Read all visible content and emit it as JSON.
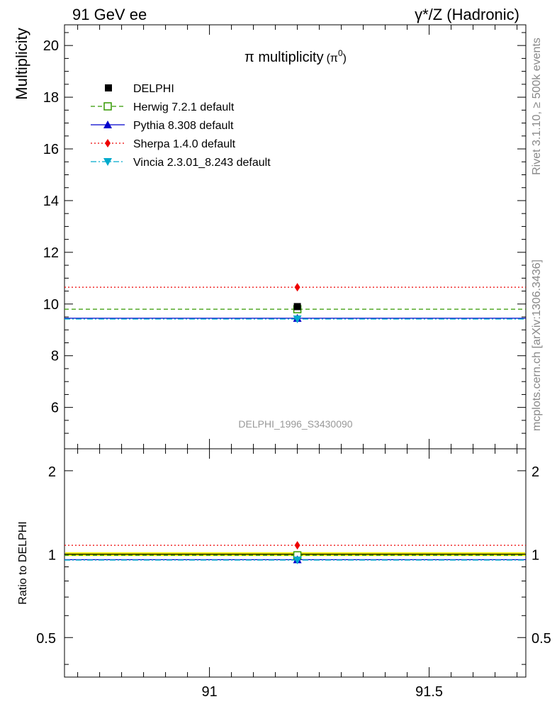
{
  "header": {
    "left": "91 GeV ee",
    "right": "γ*/Z (Hadronic)"
  },
  "side_labels": {
    "rivet": "Rivet 3.1.10, ≥ 500k events",
    "mcplots": "mcplots.cern.ch [arXiv:1306.3436]"
  },
  "chart_data": [
    {
      "type": "scatter",
      "title": "π multiplicity",
      "title_suffix": "(π",
      "title_sup": "0",
      "title_close": ")",
      "ylabel": "Multiplicity",
      "xlim": [
        90.67,
        91.72
      ],
      "ylim": [
        4.4,
        20.8
      ],
      "xticks": [
        91,
        91.5
      ],
      "yticks": [
        6,
        8,
        10,
        12,
        14,
        16,
        18,
        20
      ],
      "ytick_labels": [
        "6",
        "8",
        "10",
        "12",
        "14",
        "16",
        "18",
        "20"
      ],
      "watermark": "DELPHI_1996_S3430090",
      "legend_position": "top-left",
      "data": {
        "name": "DELPHI",
        "x": 91.2,
        "y": 9.9,
        "color": "#000000"
      },
      "series": [
        {
          "name": "Herwig 7.2.1 default",
          "x": [
            90.67,
            91.72
          ],
          "y": 9.8,
          "marker_x": 91.2,
          "color": "#339900",
          "dash": "6,4",
          "marker": "open-square"
        },
        {
          "name": "Pythia 8.308 default",
          "x": [
            90.67,
            91.72
          ],
          "y": 9.45,
          "marker_x": 91.2,
          "color": "#0000cc",
          "dash": "",
          "marker": "triangle-up"
        },
        {
          "name": "Sherpa 1.4.0 default",
          "x": [
            90.67,
            91.72
          ],
          "y": 10.65,
          "marker_x": 91.2,
          "color": "#ee0000",
          "dash": "2,3",
          "marker": "diamond"
        },
        {
          "name": "Vincia 2.3.01_8.243 default",
          "x": [
            90.67,
            91.72
          ],
          "y": 9.42,
          "marker_x": 91.2,
          "color": "#00aacc",
          "dash": "8,3,2,3",
          "marker": "triangle-down"
        }
      ]
    },
    {
      "type": "scatter",
      "ylabel": "Ratio to DELPHI",
      "xlim": [
        90.67,
        91.72
      ],
      "ylim": [
        0.36,
        2.4
      ],
      "log_y": true,
      "xticks": [
        91,
        91.5
      ],
      "xtick_labels": [
        "91",
        "91.5"
      ],
      "yticks": [
        0.5,
        1,
        2
      ],
      "ytick_labels": [
        "0.5",
        "1",
        "2"
      ],
      "band": {
        "low": 0.985,
        "high": 1.015,
        "color": "#ffff00"
      },
      "series": [
        {
          "name": "Herwig 7.2.1 default",
          "y": 0.99,
          "color": "#339900",
          "dash": "6,4",
          "marker": "open-square"
        },
        {
          "name": "Pythia 8.308 default",
          "y": 0.955,
          "color": "#0000cc",
          "dash": "",
          "marker": "triangle-up"
        },
        {
          "name": "Sherpa 1.4.0 default",
          "y": 1.076,
          "color": "#ee0000",
          "dash": "2,3",
          "marker": "diamond"
        },
        {
          "name": "Vincia 2.3.01_8.243 default",
          "y": 0.952,
          "color": "#00aacc",
          "dash": "8,3,2,3",
          "marker": "triangle-down"
        }
      ]
    }
  ]
}
